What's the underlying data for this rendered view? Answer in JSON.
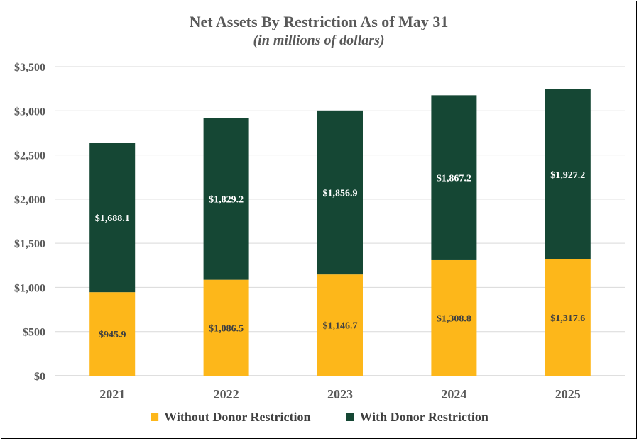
{
  "chart_data": {
    "type": "bar",
    "stacked": true,
    "title": "Net Assets By Restriction As of May 31",
    "subtitle": "(in millions of dollars)",
    "categories": [
      "2021",
      "2022",
      "2023",
      "2024",
      "2025"
    ],
    "series": [
      {
        "name": "Without Donor Restriction",
        "values": [
          945.9,
          1086.5,
          1146.7,
          1308.8,
          1317.6
        ],
        "labels": [
          "$945.9",
          "$1,086.5",
          "$1,146.7",
          "$1,308.8",
          "$1,317.6"
        ],
        "color": "#FDB71A",
        "label_color": "#404040"
      },
      {
        "name": "With Donor Restriction",
        "values": [
          1688.1,
          1829.2,
          1856.9,
          1867.2,
          1927.2
        ],
        "labels": [
          "$1,688.1",
          "$1,829.2",
          "$1,856.9",
          "$1,867.2",
          "$1,927.2"
        ],
        "color": "#154734",
        "label_color": "#FFFFFF"
      }
    ],
    "ylim": [
      0,
      3500
    ],
    "yticks": [
      0,
      500,
      1000,
      1500,
      2000,
      2500,
      3000,
      3500
    ],
    "ytick_labels": [
      "$0",
      "$500",
      "$1,000",
      "$1,500",
      "$2,000",
      "$2,500",
      "$3,000",
      "$3,500"
    ],
    "grid": true,
    "legend_position": "bottom"
  }
}
